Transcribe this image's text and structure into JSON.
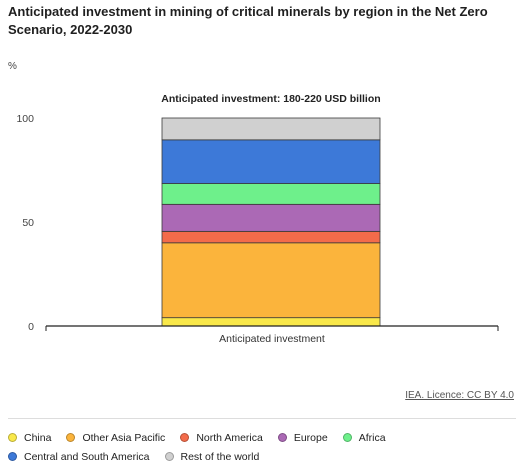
{
  "title": "Anticipated investment in mining of critical minerals by region in the Net Zero Scenario, 2022-2030",
  "source": "IEA. Licence: CC BY 4.0",
  "chart_data": {
    "type": "bar",
    "stacked": true,
    "title": "Anticipated investment in mining of critical minerals by region in the Net Zero Scenario, 2022-2030",
    "ylabel": "%",
    "xlabel": "",
    "ylim": [
      0,
      100
    ],
    "yticks": [
      0,
      50,
      100
    ],
    "annotation": "Anticipated investment: 180-220 USD billion",
    "categories": [
      "Anticipated investment"
    ],
    "series": [
      {
        "name": "China",
        "color": "#f9e84a",
        "values": [
          4
        ]
      },
      {
        "name": "Other Asia Pacific",
        "color": "#fbb43c",
        "values": [
          36
        ]
      },
      {
        "name": "North America",
        "color": "#f36b4a",
        "values": [
          5.5
        ]
      },
      {
        "name": "Europe",
        "color": "#ab69b5",
        "values": [
          13
        ]
      },
      {
        "name": "Africa",
        "color": "#6ef08b",
        "values": [
          10
        ]
      },
      {
        "name": "Central and South America",
        "color": "#3d79d8",
        "values": [
          21
        ]
      },
      {
        "name": "Rest of the world",
        "color": "#d0d0d0",
        "values": [
          10.5
        ]
      }
    ],
    "legend_position": "bottom",
    "grid": false
  },
  "legend_rows": [
    [
      0,
      1,
      2,
      3,
      4
    ],
    [
      5,
      6
    ]
  ]
}
